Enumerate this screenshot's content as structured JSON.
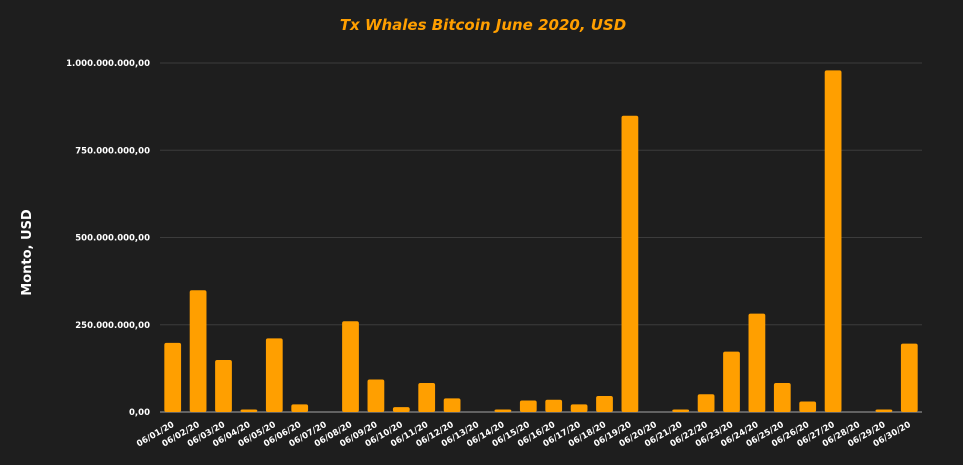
{
  "chart_data": {
    "type": "bar",
    "title": "Tx Whales Bitcoin June 2020, USD",
    "xlabel": "",
    "ylabel": "Monto, USD",
    "ylim": [
      0,
      1000000000
    ],
    "yticks": [
      0,
      250000000,
      500000000,
      750000000,
      1000000000
    ],
    "ytick_labels": [
      "0,00",
      "250.000.000,00",
      "500.000.000,00",
      "750.000.000,00",
      "1.000.000.000,00"
    ],
    "grid": true,
    "categories": [
      "06/01/20",
      "06/02/20",
      "06/03/20",
      "06/04/20",
      "06/05/20",
      "06/06/20",
      "06/07/20",
      "06/08/20",
      "06/09/20",
      "06/10/20",
      "06/11/20",
      "06/12/20",
      "06/13/20",
      "06/14/20",
      "06/15/20",
      "06/16/20",
      "06/17/20",
      "06/18/20",
      "06/19/20",
      "06/20/20",
      "06/21/20",
      "06/22/20",
      "06/23/20",
      "06/24/20",
      "06/25/20",
      "06/26/20",
      "06/27/20",
      "06/28/20",
      "06/29/20",
      "06/30/20"
    ],
    "values": [
      198000000,
      349000000,
      149000000,
      7000000,
      211000000,
      22000000,
      0,
      260000000,
      93000000,
      14000000,
      83000000,
      39000000,
      0,
      7000000,
      33000000,
      35000000,
      22000000,
      46000000,
      849000000,
      0,
      7000000,
      51000000,
      173000000,
      282000000,
      83000000,
      30000000,
      979000000,
      0,
      7000000,
      196000000
    ]
  },
  "colors": {
    "background": "#1e1e1e",
    "bar": "#ff9f00",
    "title": "#ff9f00",
    "text": "#ffffff",
    "grid": "#3c3c3c",
    "axis": "#8a8a8a"
  }
}
